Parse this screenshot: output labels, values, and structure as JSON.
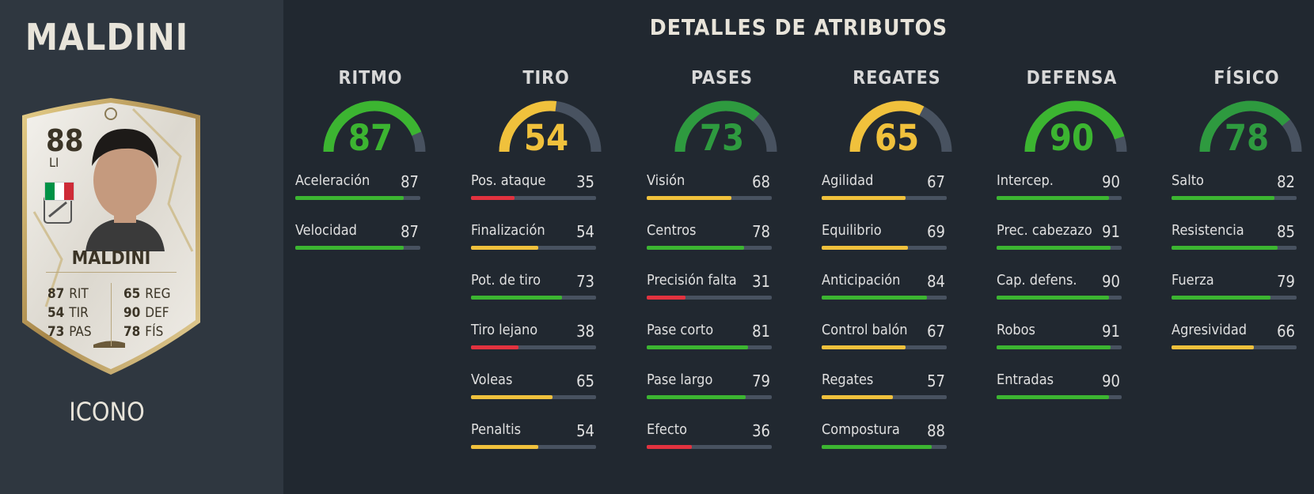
{
  "player": {
    "name": "MALDINI",
    "card_type": "ICONO"
  },
  "card": {
    "rating": "88",
    "position": "LI",
    "name": "MALDINI",
    "flag_colors": [
      "#009246",
      "#ffffff",
      "#ce2b37"
    ],
    "stats": [
      {
        "value": "87",
        "label": "RIT"
      },
      {
        "value": "54",
        "label": "TIR"
      },
      {
        "value": "73",
        "label": "PAS"
      },
      {
        "value": "65",
        "label": "REG"
      },
      {
        "value": "90",
        "label": "DEF"
      },
      {
        "value": "78",
        "label": "FÍS"
      }
    ]
  },
  "heading": "DETALLES DE ATRIBUTOS",
  "colors": {
    "green": "#3cb531",
    "dark_green": "#2e9a3f",
    "yellow": "#f0c13c",
    "red": "#e2323f",
    "track": "#485260"
  },
  "categories": [
    {
      "name": "RITMO",
      "value": "87",
      "attrs": [
        {
          "name": "Aceleración",
          "value": "87"
        },
        {
          "name": "Velocidad",
          "value": "87"
        }
      ]
    },
    {
      "name": "TIRO",
      "value": "54",
      "attrs": [
        {
          "name": "Pos. ataque",
          "value": "35"
        },
        {
          "name": "Finalización",
          "value": "54"
        },
        {
          "name": "Pot. de tiro",
          "value": "73"
        },
        {
          "name": "Tiro lejano",
          "value": "38"
        },
        {
          "name": "Voleas",
          "value": "65"
        },
        {
          "name": "Penaltis",
          "value": "54"
        }
      ]
    },
    {
      "name": "PASES",
      "value": "73",
      "attrs": [
        {
          "name": "Visión",
          "value": "68"
        },
        {
          "name": "Centros",
          "value": "78"
        },
        {
          "name": "Precisión falta",
          "value": "31"
        },
        {
          "name": "Pase corto",
          "value": "81"
        },
        {
          "name": "Pase largo",
          "value": "79"
        },
        {
          "name": "Efecto",
          "value": "36"
        }
      ]
    },
    {
      "name": "REGATES",
      "value": "65",
      "attrs": [
        {
          "name": "Agilidad",
          "value": "67"
        },
        {
          "name": "Equilibrio",
          "value": "69"
        },
        {
          "name": "Anticipación",
          "value": "84"
        },
        {
          "name": "Control balón",
          "value": "67"
        },
        {
          "name": "Regates",
          "value": "57"
        },
        {
          "name": "Compostura",
          "value": "88"
        }
      ]
    },
    {
      "name": "DEFENSA",
      "value": "90",
      "attrs": [
        {
          "name": "Intercep.",
          "value": "90"
        },
        {
          "name": "Prec. cabezazo",
          "value": "91"
        },
        {
          "name": "Cap. defens.",
          "value": "90"
        },
        {
          "name": "Robos",
          "value": "91"
        },
        {
          "name": "Entradas",
          "value": "90"
        }
      ]
    },
    {
      "name": "FÍSICO",
      "value": "78",
      "attrs": [
        {
          "name": "Salto",
          "value": "82"
        },
        {
          "name": "Resistencia",
          "value": "85"
        },
        {
          "name": "Fuerza",
          "value": "79"
        },
        {
          "name": "Agresividad",
          "value": "66"
        }
      ]
    }
  ]
}
